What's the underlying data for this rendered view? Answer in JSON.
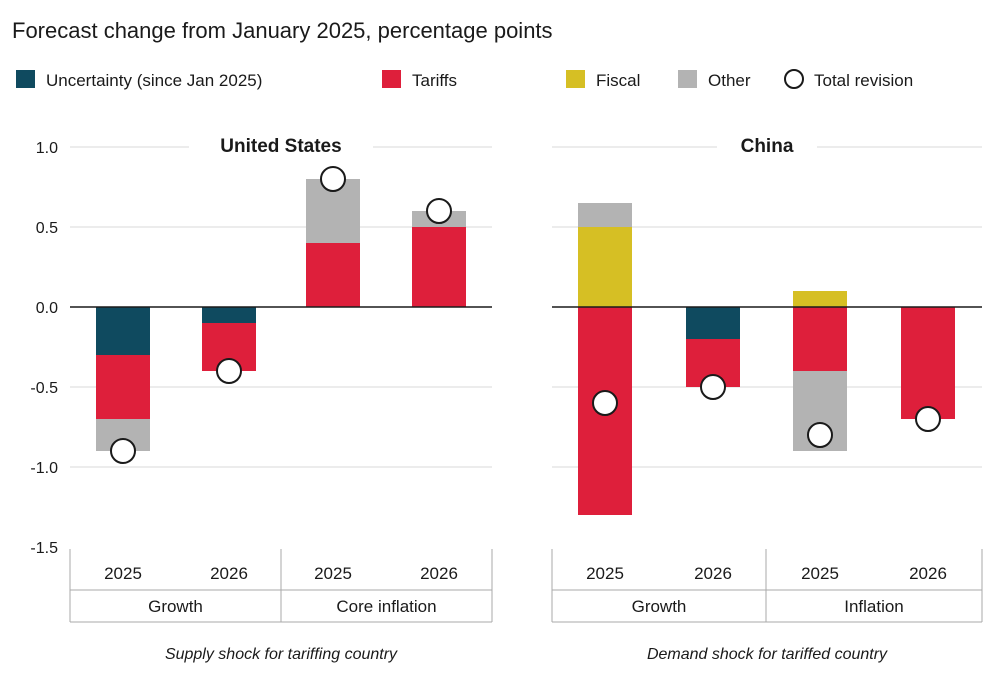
{
  "chart_data": {
    "type": "bar",
    "stacked": true,
    "title": "Forecast change from January 2025, percentage points",
    "ylim": [
      -1.5,
      1.0
    ],
    "yticks": [
      1.0,
      0.5,
      0.0,
      -0.5,
      -1.0,
      -1.5
    ],
    "ytick_labels": [
      "1.0",
      "0.5",
      "0.0",
      "-0.5",
      "-1.0",
      "-1.5"
    ],
    "legend": {
      "placement": "top",
      "items": [
        {
          "key": "uncertainty",
          "label": "Uncertainty (since Jan 2025)",
          "color": "#0f4a5f",
          "marker": "square"
        },
        {
          "key": "tariffs",
          "label": "Tariffs",
          "color": "#de1f3b",
          "marker": "square"
        },
        {
          "key": "fiscal",
          "label": "Fiscal",
          "color": "#d6bf24",
          "marker": "square"
        },
        {
          "key": "other",
          "label": "Other",
          "color": "#b3b3b3",
          "marker": "square"
        },
        {
          "key": "total",
          "label": "Total revision",
          "color": "#ffffff",
          "marker": "circle"
        }
      ]
    },
    "panels": [
      {
        "title": "United States",
        "note": "Supply shock for tariffing country",
        "groups": [
          {
            "label": "Growth",
            "bars": [
              {
                "label": "2025",
                "segments": [
                  {
                    "series": "uncertainty",
                    "value": -0.3
                  },
                  {
                    "series": "tariffs",
                    "value": -0.4
                  },
                  {
                    "series": "other",
                    "value": -0.2
                  }
                ],
                "total": -0.9
              },
              {
                "label": "2026",
                "segments": [
                  {
                    "series": "uncertainty",
                    "value": -0.1
                  },
                  {
                    "series": "tariffs",
                    "value": -0.3
                  }
                ],
                "total": -0.4
              }
            ]
          },
          {
            "label": "Core inflation",
            "bars": [
              {
                "label": "2025",
                "segments": [
                  {
                    "series": "tariffs",
                    "value": 0.4
                  },
                  {
                    "series": "other",
                    "value": 0.4
                  }
                ],
                "total": 0.8
              },
              {
                "label": "2026",
                "segments": [
                  {
                    "series": "tariffs",
                    "value": 0.5
                  },
                  {
                    "series": "other",
                    "value": 0.1
                  }
                ],
                "total": 0.6
              }
            ]
          }
        ]
      },
      {
        "title": "China",
        "note": "Demand shock for tariffed country",
        "groups": [
          {
            "label": "Growth",
            "bars": [
              {
                "label": "2025",
                "segments": [
                  {
                    "series": "fiscal",
                    "value": 0.5
                  },
                  {
                    "series": "other",
                    "value": 0.15
                  },
                  {
                    "series": "tariffs",
                    "value": -1.3
                  }
                ],
                "total": -0.6
              },
              {
                "label": "2026",
                "segments": [
                  {
                    "series": "uncertainty",
                    "value": -0.2
                  },
                  {
                    "series": "tariffs",
                    "value": -0.3
                  }
                ],
                "total": -0.5
              }
            ]
          },
          {
            "label": "Inflation",
            "bars": [
              {
                "label": "2025",
                "segments": [
                  {
                    "series": "fiscal",
                    "value": 0.1
                  },
                  {
                    "series": "tariffs",
                    "value": -0.4
                  },
                  {
                    "series": "other",
                    "value": -0.5
                  }
                ],
                "total": -0.8
              },
              {
                "label": "2026",
                "segments": [
                  {
                    "series": "tariffs",
                    "value": -0.7
                  }
                ],
                "total": -0.7
              }
            ]
          }
        ]
      }
    ]
  }
}
